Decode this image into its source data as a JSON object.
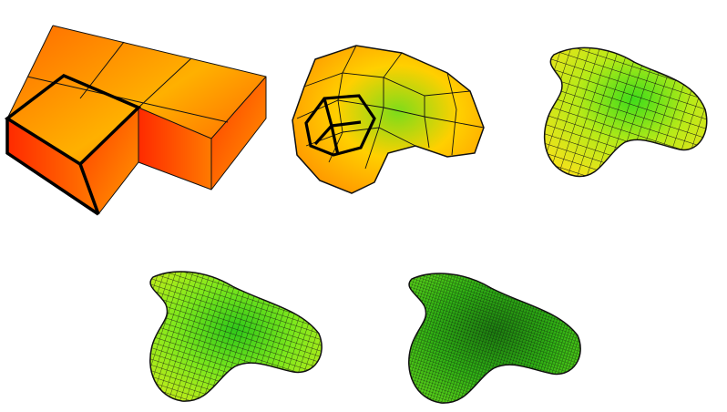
{
  "figure": {
    "panels": [
      {
        "level": 0,
        "colors": {
          "hot": "#ff2a00",
          "mid": "#ff6a00",
          "warm": "#ffb000"
        }
      },
      {
        "level": 1,
        "colors": {
          "hot": "#ff8a00",
          "mid": "#ffd000",
          "cool": "#7ddc1a"
        }
      },
      {
        "level": 2,
        "colors": {
          "warm": "#f2e21a",
          "mid": "#b8ea18",
          "cool": "#3fdc1a"
        }
      },
      {
        "level": 3,
        "colors": {
          "warm": "#c8ec1a",
          "mid": "#7ee81c",
          "cool": "#2fc81a"
        }
      },
      {
        "level": 4,
        "colors": {
          "warm": "#5ed41a",
          "mid": "#2fb014",
          "cool": "#1d7d10"
        }
      }
    ],
    "mesh_line_color": "#111111",
    "highlight_line_color": "#000000"
  }
}
